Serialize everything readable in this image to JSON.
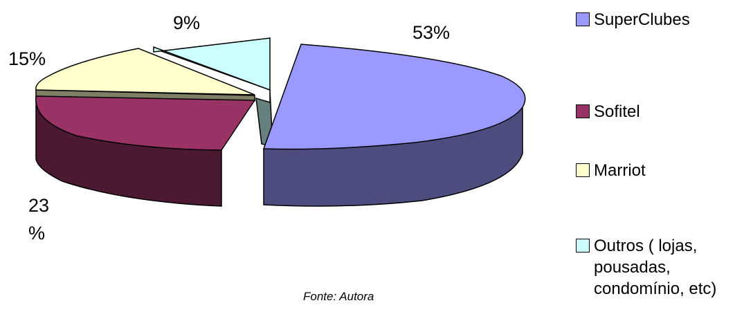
{
  "chart_data": {
    "type": "pie",
    "variant": "3d-exploded",
    "slices": [
      {
        "label": "SuperClubes",
        "value": 53,
        "pct_label": "53%",
        "color": "#9999FF",
        "side_color": "#4C4C7F"
      },
      {
        "label": "Sofitel",
        "value": 23,
        "pct_label": "23\n%",
        "color": "#993366",
        "side_color": "#4C1933"
      },
      {
        "label": "Marriot",
        "value": 15,
        "pct_label": "15%",
        "color": "#FFFFCC",
        "side_color": "#7F7F66"
      },
      {
        "label": "Outros  ( lojas,\npousadas,\ncondomínio, etc)",
        "value": 9,
        "pct_label": "9%",
        "color": "#CCFFFF",
        "side_color": "#667F7F"
      }
    ],
    "legend_position": "right"
  },
  "source_note": "Fonte: Autora"
}
